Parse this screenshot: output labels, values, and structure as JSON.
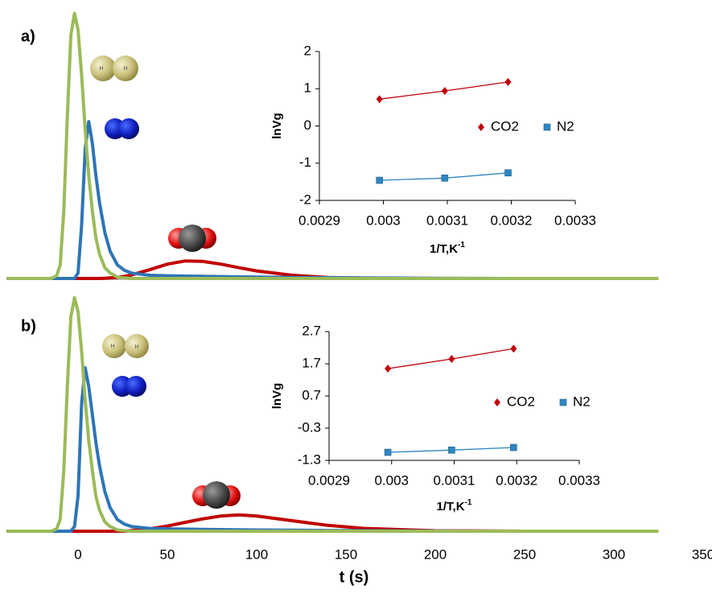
{
  "molecule_atom_label": "H",
  "chart_data": [
    {
      "type": "line",
      "panel_label": "a)",
      "x": [
        -40,
        -20,
        -15,
        -12,
        -10,
        -8,
        -6,
        -4,
        -2,
        0,
        2,
        4,
        6,
        8,
        10,
        12,
        15,
        18,
        22,
        26,
        30,
        40,
        50,
        60,
        70,
        80,
        90,
        100,
        120,
        140,
        160,
        200,
        250,
        325
      ],
      "xlim": [
        -39.2,
        350
      ],
      "ylim": [
        0,
        100
      ],
      "series": [
        {
          "color": "#c00000",
          "values": [
            0,
            0,
            0,
            0,
            0,
            0,
            0,
            0,
            0,
            0,
            0,
            0,
            0,
            0,
            0,
            0,
            0.1,
            0.2,
            0.4,
            0.8,
            1.3,
            3.2,
            5.3,
            6.5,
            6.3,
            5.3,
            4,
            2.8,
            1.2,
            0.4,
            0.15,
            0,
            0,
            0
          ]
        },
        {
          "color": "#2e75b6",
          "values": [
            0,
            0,
            0,
            0,
            0,
            0,
            0,
            0,
            0,
            2,
            20,
            48,
            58,
            50,
            38,
            28,
            17,
            10,
            5,
            3,
            2,
            1.2,
            1,
            0.9,
            0.8,
            0.7,
            0.6,
            0.5,
            0.4,
            0.3,
            0.2,
            0.1,
            0,
            0
          ]
        },
        {
          "color": "#9bbb59",
          "values": [
            0,
            0,
            0,
            1,
            5,
            25,
            60,
            90,
            98,
            92,
            75,
            55,
            38,
            25,
            15,
            9,
            4,
            2,
            0.5,
            0.2,
            0,
            0,
            0,
            0,
            0,
            0,
            0,
            0,
            0,
            0,
            0,
            0,
            0,
            0
          ]
        }
      ]
    },
    {
      "type": "scatter",
      "y_label": "lnVg",
      "x_label": "1/T,K",
      "x_label_sup": "-1",
      "xlim": [
        0.0029,
        0.0033
      ],
      "xticks": [
        0.0029,
        0.003,
        0.0031,
        0.0032,
        0.0033
      ],
      "ylim": [
        -2,
        2
      ],
      "yticks": [
        -2,
        -1,
        0,
        1,
        2
      ],
      "legend": "center-right",
      "series": [
        {
          "name": "CO2",
          "color": "#c0000d",
          "marker": "diamond",
          "trendline": true,
          "x": [
            0.002994,
            0.003096,
            0.003195
          ],
          "values": [
            0.72,
            0.94,
            1.18
          ]
        },
        {
          "name": "N2",
          "color": "#2e86c1",
          "marker": "square",
          "trendline": true,
          "x": [
            0.002994,
            0.003096,
            0.003195
          ],
          "values": [
            -1.46,
            -1.4,
            -1.26
          ]
        }
      ]
    },
    {
      "type": "line",
      "panel_label": "b)",
      "x_label": "t (s)",
      "x": [
        -40,
        -20,
        -15,
        -12,
        -10,
        -8,
        -6,
        -4,
        -2,
        0,
        2,
        4,
        6,
        8,
        10,
        12,
        15,
        18,
        22,
        26,
        30,
        40,
        50,
        60,
        70,
        80,
        90,
        100,
        120,
        140,
        160,
        200,
        250,
        325
      ],
      "xlim": [
        -39.2,
        350
      ],
      "xticks": [
        0,
        50,
        100,
        150,
        200,
        250,
        300,
        350
      ],
      "ylim": [
        0,
        100
      ],
      "series": [
        {
          "color": "#c00000",
          "values": [
            0,
            0,
            0,
            0,
            0,
            0,
            0,
            0,
            0,
            0,
            0,
            0,
            0,
            0,
            0,
            0,
            0,
            0,
            0,
            0,
            0.3,
            1,
            2.2,
            3.8,
            5.3,
            6.5,
            7,
            6.5,
            4.5,
            2.5,
            1.2,
            0.2,
            0,
            0
          ]
        },
        {
          "color": "#2e75b6",
          "values": [
            0,
            0,
            0,
            0,
            0,
            0,
            0,
            0,
            2,
            15,
            55,
            70,
            62,
            50,
            38,
            28,
            17,
            10,
            5,
            3,
            2,
            1.2,
            1,
            0.9,
            0.8,
            0.7,
            0.6,
            0.5,
            0.4,
            0.3,
            0.2,
            0.1,
            0,
            0
          ]
        },
        {
          "color": "#9bbb59",
          "values": [
            0,
            0,
            0,
            1,
            5,
            26,
            62,
            92,
            100,
            94,
            77,
            56,
            39,
            26,
            15,
            9,
            4,
            2,
            0.5,
            0.2,
            0,
            0,
            0,
            0,
            0,
            0,
            0,
            0,
            0,
            0,
            0,
            0,
            0,
            0
          ]
        }
      ]
    },
    {
      "type": "scatter",
      "y_label": "lnVg",
      "x_label": "1/T,K",
      "x_label_sup": "-1",
      "xlim": [
        0.0029,
        0.0033
      ],
      "xticks": [
        0.0029,
        0.003,
        0.0031,
        0.0032,
        0.0033
      ],
      "ylim": [
        -1.3,
        2.7
      ],
      "yticks": [
        -1.3,
        -0.3,
        0.7,
        1.7,
        2.7
      ],
      "legend": "center-right",
      "series": [
        {
          "name": "CO2",
          "color": "#c0000d",
          "marker": "diamond",
          "trendline": true,
          "x": [
            0.002994,
            0.003096,
            0.003195
          ],
          "values": [
            1.55,
            1.85,
            2.17
          ]
        },
        {
          "name": "N2",
          "color": "#2e86c1",
          "marker": "square",
          "trendline": true,
          "x": [
            0.002994,
            0.003096,
            0.003195
          ],
          "values": [
            -1.05,
            -0.98,
            -0.9
          ]
        }
      ]
    }
  ]
}
